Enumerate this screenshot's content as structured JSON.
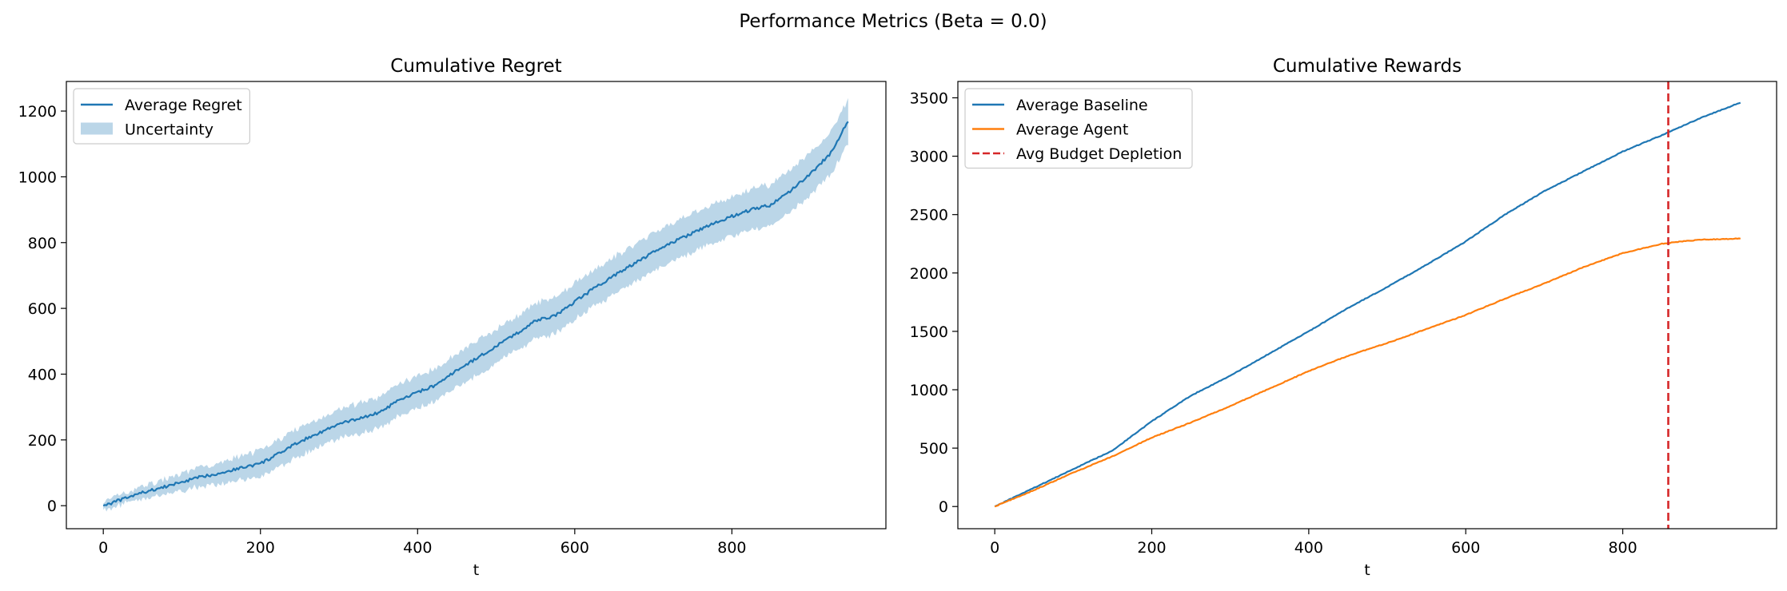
{
  "figure": {
    "suptitle": "Performance Metrics (Beta = 0.0)"
  },
  "colors": {
    "blue": "#1f77b4",
    "orange": "#ff7f0e",
    "red": "#d62728",
    "band": "#1f77b4"
  },
  "chart_data": [
    {
      "type": "line",
      "title": "Cumulative Regret",
      "xlabel": "t",
      "ylabel": "",
      "xlim": [
        -47,
        996
      ],
      "ylim": [
        -70,
        1290
      ],
      "xticks": [
        0,
        200,
        400,
        600,
        800
      ],
      "yticks": [
        0,
        200,
        400,
        600,
        800,
        1000,
        1200
      ],
      "legend_position": "upper left",
      "series": [
        {
          "name": "Average Regret",
          "color": "#1f77b4",
          "points": [
            [
              0,
              0
            ],
            [
              25,
              20
            ],
            [
              50,
              40
            ],
            [
              75,
              55
            ],
            [
              100,
              72
            ],
            [
              125,
              88
            ],
            [
              150,
              100
            ],
            [
              175,
              115
            ],
            [
              200,
              128
            ],
            [
              225,
              160
            ],
            [
              250,
              195
            ],
            [
              275,
              222
            ],
            [
              300,
              248
            ],
            [
              325,
              265
            ],
            [
              350,
              282
            ],
            [
              375,
              318
            ],
            [
              400,
              345
            ],
            [
              425,
              368
            ],
            [
              450,
              412
            ],
            [
              475,
              448
            ],
            [
              500,
              485
            ],
            [
              525,
              522
            ],
            [
              550,
              562
            ],
            [
              575,
              578
            ],
            [
              600,
              620
            ],
            [
              625,
              662
            ],
            [
              650,
              700
            ],
            [
              675,
              735
            ],
            [
              700,
              770
            ],
            [
              725,
              802
            ],
            [
              750,
              828
            ],
            [
              775,
              858
            ],
            [
              800,
              880
            ],
            [
              825,
              900
            ],
            [
              850,
              915
            ],
            [
              875,
              958
            ],
            [
              900,
              1010
            ],
            [
              925,
              1070
            ],
            [
              948,
              1170
            ]
          ]
        }
      ],
      "band": {
        "name": "Uncertainty",
        "color": "#1f77b4",
        "opacity": 0.3,
        "half_width": [
          [
            0,
            12
          ],
          [
            200,
            40
          ],
          [
            400,
            50
          ],
          [
            600,
            55
          ],
          [
            800,
            60
          ],
          [
            948,
            65
          ]
        ]
      }
    },
    {
      "type": "line",
      "title": "Cumulative Rewards",
      "xlabel": "t",
      "ylabel": "",
      "xlim": [
        -47,
        996
      ],
      "ylim": [
        -190,
        3640
      ],
      "xticks": [
        0,
        200,
        400,
        600,
        800
      ],
      "yticks": [
        0,
        500,
        1000,
        1500,
        2000,
        2500,
        3000,
        3500
      ],
      "legend_position": "upper left",
      "series": [
        {
          "name": "Average Baseline",
          "color": "#1f77b4",
          "points": [
            [
              0,
              0
            ],
            [
              50,
              160
            ],
            [
              100,
              320
            ],
            [
              150,
              480
            ],
            [
              200,
              730
            ],
            [
              250,
              950
            ],
            [
              300,
              1120
            ],
            [
              350,
              1310
            ],
            [
              400,
              1500
            ],
            [
              450,
              1700
            ],
            [
              500,
              1880
            ],
            [
              550,
              2070
            ],
            [
              600,
              2270
            ],
            [
              650,
              2500
            ],
            [
              700,
              2700
            ],
            [
              750,
              2870
            ],
            [
              800,
              3040
            ],
            [
              850,
              3180
            ],
            [
              900,
              3330
            ],
            [
              950,
              3460
            ]
          ]
        },
        {
          "name": "Average Agent",
          "color": "#ff7f0e",
          "points": [
            [
              0,
              0
            ],
            [
              50,
              140
            ],
            [
              100,
              290
            ],
            [
              150,
              430
            ],
            [
              200,
              590
            ],
            [
              250,
              720
            ],
            [
              300,
              860
            ],
            [
              350,
              1010
            ],
            [
              400,
              1160
            ],
            [
              450,
              1290
            ],
            [
              500,
              1400
            ],
            [
              550,
              1520
            ],
            [
              600,
              1640
            ],
            [
              650,
              1780
            ],
            [
              700,
              1910
            ],
            [
              750,
              2050
            ],
            [
              800,
              2170
            ],
            [
              850,
              2250
            ],
            [
              875,
              2270
            ],
            [
              900,
              2285
            ],
            [
              950,
              2295
            ]
          ]
        }
      ],
      "vline": {
        "name": "Avg Budget Depletion",
        "x": 858,
        "color": "#d62728"
      }
    }
  ]
}
